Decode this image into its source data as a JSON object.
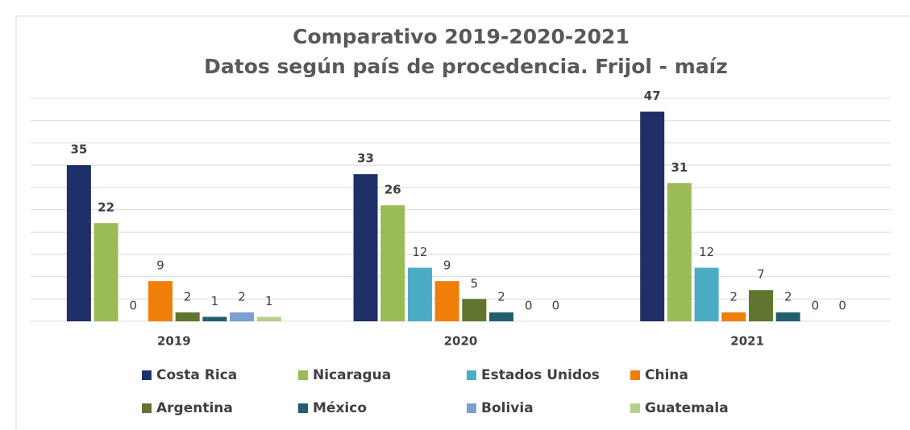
{
  "chart_data": {
    "type": "bar",
    "title": "Comparativo 2019-2020-2021",
    "subtitle": "Datos según país de procedencia. Frijol - maíz",
    "categories": [
      "2019",
      "2020",
      "2021"
    ],
    "series": [
      {
        "name": "Costa Rica",
        "color": "#1f3068",
        "bold_labels": true,
        "values": [
          35,
          33,
          47
        ]
      },
      {
        "name": "Nicaragua",
        "color": "#9bbb59",
        "bold_labels": true,
        "values": [
          22,
          26,
          31
        ]
      },
      {
        "name": "Estados Unidos",
        "color": "#4bacc6",
        "bold_labels": false,
        "values": [
          0,
          12,
          12
        ]
      },
      {
        "name": "China",
        "color": "#f07f09",
        "bold_labels": false,
        "values": [
          9,
          9,
          2
        ]
      },
      {
        "name": "Argentina",
        "color": "#5f7530",
        "bold_labels": false,
        "values": [
          2,
          5,
          7
        ]
      },
      {
        "name": "México",
        "color": "#215f6e",
        "bold_labels": false,
        "values": [
          1,
          2,
          2
        ]
      },
      {
        "name": "Bolivia",
        "color": "#7b9fd1",
        "bold_labels": false,
        "values": [
          2,
          0,
          0
        ]
      },
      {
        "name": "Guatemala",
        "color": "#b5d08a",
        "bold_labels": false,
        "values": [
          1,
          0,
          0
        ]
      }
    ],
    "ylim": [
      0,
      50
    ],
    "yticks": [
      0,
      5,
      10,
      15,
      20,
      25,
      30,
      35,
      40,
      45,
      50
    ],
    "grid": true,
    "ytick_labels_shown": false,
    "legend": "bottom"
  }
}
